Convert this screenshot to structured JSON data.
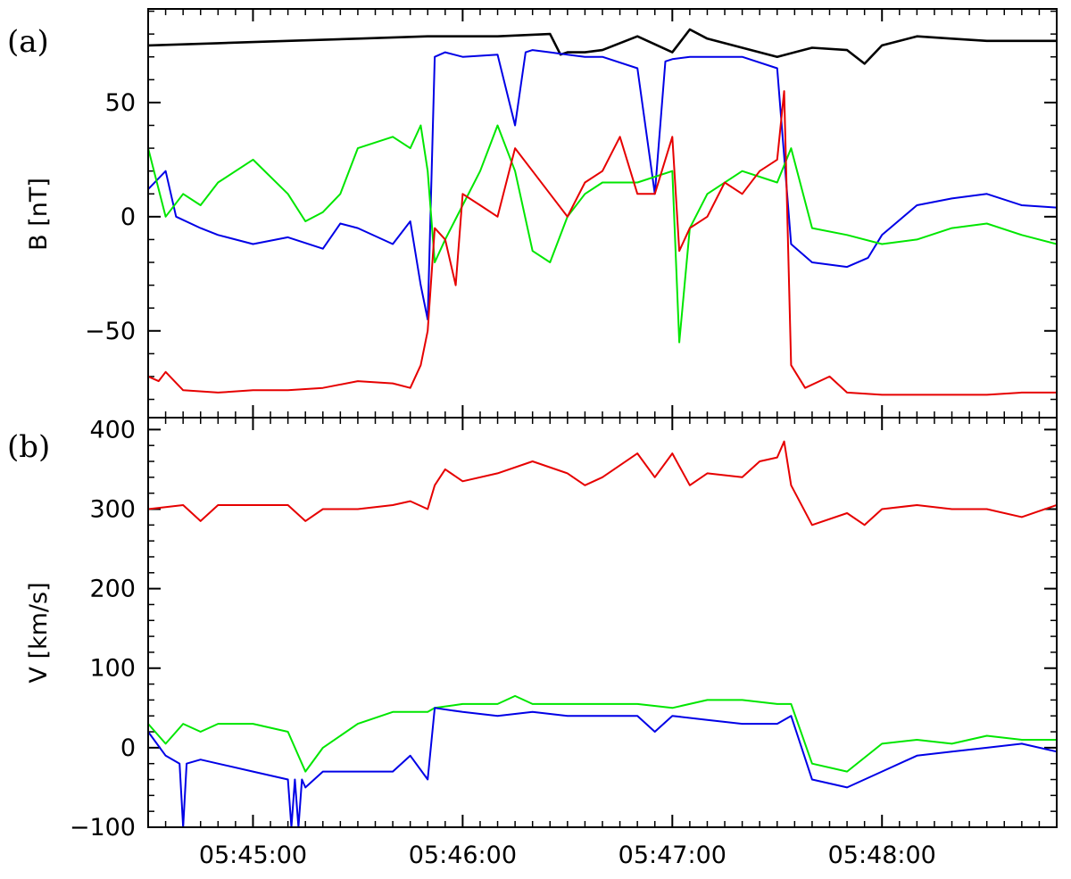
{
  "chart_data": [
    {
      "panel_label": "(a)",
      "type": "line",
      "ylabel": "B [nT]",
      "ylim": [
        -88,
        91
      ],
      "yticks": [
        -50,
        0,
        50
      ],
      "ytick_labels": [
        "−50",
        "0",
        "50"
      ],
      "xlim": [
        0,
        260
      ],
      "xtick_labels": [],
      "legend": "none",
      "series": [
        {
          "color": "#000000",
          "x": [
            0,
            20,
            40,
            60,
            80,
            100,
            115,
            118,
            120,
            125,
            130,
            140,
            150,
            155,
            160,
            170,
            180,
            190,
            200,
            205,
            210,
            220,
            230,
            240,
            250,
            260
          ],
          "values": [
            75,
            76,
            77,
            78,
            79,
            79,
            80,
            71,
            72,
            72,
            73,
            79,
            72,
            82,
            78,
            74,
            70,
            74,
            73,
            67,
            75,
            79,
            78,
            77,
            77,
            77
          ]
        },
        {
          "color": "#0000e6",
          "x": [
            0,
            5,
            8,
            15,
            20,
            30,
            40,
            50,
            55,
            60,
            70,
            75,
            78,
            80,
            82,
            85,
            90,
            100,
            105,
            108,
            110,
            115,
            120,
            125,
            130,
            140,
            145,
            148,
            150,
            155,
            160,
            170,
            180,
            184,
            190,
            200,
            206,
            210,
            220,
            230,
            240,
            250,
            260
          ],
          "values": [
            12,
            20,
            0,
            -5,
            -8,
            -12,
            -9,
            -14,
            -3,
            -5,
            -12,
            -2,
            -30,
            -45,
            70,
            72,
            70,
            71,
            40,
            72,
            73,
            72,
            71,
            70,
            70,
            65,
            10,
            68,
            69,
            70,
            70,
            70,
            65,
            -12,
            -20,
            -22,
            -18,
            -8,
            5,
            8,
            10,
            5,
            4
          ]
        },
        {
          "color": "#00e600",
          "x": [
            0,
            5,
            10,
            15,
            20,
            30,
            40,
            45,
            50,
            55,
            60,
            70,
            75,
            78,
            80,
            82,
            85,
            90,
            95,
            100,
            105,
            110,
            115,
            120,
            125,
            130,
            140,
            150,
            152,
            155,
            160,
            170,
            180,
            184,
            190,
            200,
            210,
            220,
            230,
            240,
            250,
            260
          ],
          "values": [
            30,
            0,
            10,
            5,
            15,
            25,
            10,
            -2,
            2,
            10,
            30,
            35,
            30,
            40,
            20,
            -20,
            -10,
            5,
            20,
            40,
            20,
            -15,
            -20,
            0,
            10,
            15,
            15,
            20,
            -55,
            -5,
            10,
            20,
            15,
            30,
            -5,
            -8,
            -12,
            -10,
            -5,
            -3,
            -8,
            -12
          ]
        },
        {
          "color": "#e60000",
          "x": [
            0,
            3,
            5,
            10,
            20,
            30,
            40,
            50,
            60,
            70,
            75,
            78,
            80,
            82,
            85,
            88,
            90,
            95,
            100,
            105,
            110,
            115,
            120,
            125,
            130,
            135,
            140,
            145,
            150,
            152,
            155,
            160,
            165,
            170,
            175,
            180,
            182,
            184,
            188,
            195,
            200,
            210,
            220,
            230,
            240,
            250,
            260
          ],
          "values": [
            -70,
            -72,
            -68,
            -76,
            -77,
            -76,
            -76,
            -75,
            -72,
            -73,
            -75,
            -65,
            -50,
            -5,
            -10,
            -30,
            10,
            5,
            0,
            30,
            20,
            10,
            0,
            15,
            20,
            35,
            10,
            10,
            35,
            -15,
            -5,
            0,
            15,
            10,
            20,
            25,
            55,
            -65,
            -75,
            -70,
            -77,
            -78,
            -78,
            -78,
            -78,
            -77,
            -77
          ]
        }
      ]
    },
    {
      "panel_label": "(b)",
      "type": "line",
      "ylabel": "V [km/s]",
      "ylim": [
        -100,
        415
      ],
      "yticks": [
        -100,
        0,
        100,
        200,
        300,
        400
      ],
      "ytick_labels": [
        "−100",
        "0",
        "100",
        "200",
        "300",
        "400"
      ],
      "xlim": [
        0,
        260
      ],
      "xtick_positions": [
        30,
        90,
        150,
        210
      ],
      "xtick_labels": [
        "05:45:00",
        "05:46:00",
        "05:47:00",
        "05:48:00"
      ],
      "legend": "none",
      "series": [
        {
          "color": "#e60000",
          "x": [
            0,
            10,
            15,
            20,
            30,
            40,
            45,
            50,
            60,
            70,
            75,
            80,
            82,
            85,
            90,
            100,
            110,
            120,
            125,
            130,
            140,
            145,
            150,
            155,
            160,
            170,
            175,
            180,
            182,
            184,
            190,
            200,
            205,
            210,
            220,
            230,
            240,
            250,
            260
          ],
          "values": [
            300,
            305,
            285,
            305,
            305,
            305,
            285,
            300,
            300,
            305,
            310,
            300,
            330,
            350,
            335,
            345,
            360,
            345,
            330,
            340,
            370,
            340,
            370,
            330,
            345,
            340,
            360,
            365,
            385,
            330,
            280,
            295,
            280,
            300,
            305,
            300,
            300,
            290,
            305
          ]
        },
        {
          "color": "#00e600",
          "x": [
            0,
            5,
            10,
            15,
            20,
            30,
            40,
            45,
            50,
            60,
            70,
            80,
            82,
            90,
            100,
            105,
            110,
            120,
            130,
            140,
            150,
            160,
            170,
            180,
            184,
            190,
            200,
            210,
            220,
            230,
            240,
            250,
            260
          ],
          "values": [
            30,
            5,
            30,
            20,
            30,
            30,
            20,
            -30,
            0,
            30,
            45,
            45,
            50,
            55,
            55,
            65,
            55,
            55,
            55,
            55,
            50,
            60,
            60,
            55,
            55,
            -20,
            -30,
            5,
            10,
            5,
            15,
            10,
            10
          ]
        },
        {
          "color": "#0000e6",
          "x": [
            0,
            5,
            9,
            10,
            11,
            15,
            20,
            30,
            40,
            41,
            42,
            43,
            44,
            45,
            50,
            60,
            70,
            75,
            80,
            82,
            90,
            100,
            110,
            120,
            140,
            145,
            150,
            160,
            170,
            180,
            184,
            190,
            200,
            210,
            220,
            230,
            240,
            250,
            260
          ],
          "values": [
            20,
            -10,
            -20,
            -100,
            -20,
            -15,
            -20,
            -30,
            -40,
            -100,
            -40,
            -100,
            -40,
            -50,
            -30,
            -30,
            -30,
            -10,
            -40,
            50,
            45,
            40,
            45,
            40,
            40,
            20,
            40,
            35,
            30,
            30,
            40,
            -40,
            -50,
            -30,
            -10,
            -5,
            0,
            5,
            -5
          ]
        }
      ]
    }
  ]
}
